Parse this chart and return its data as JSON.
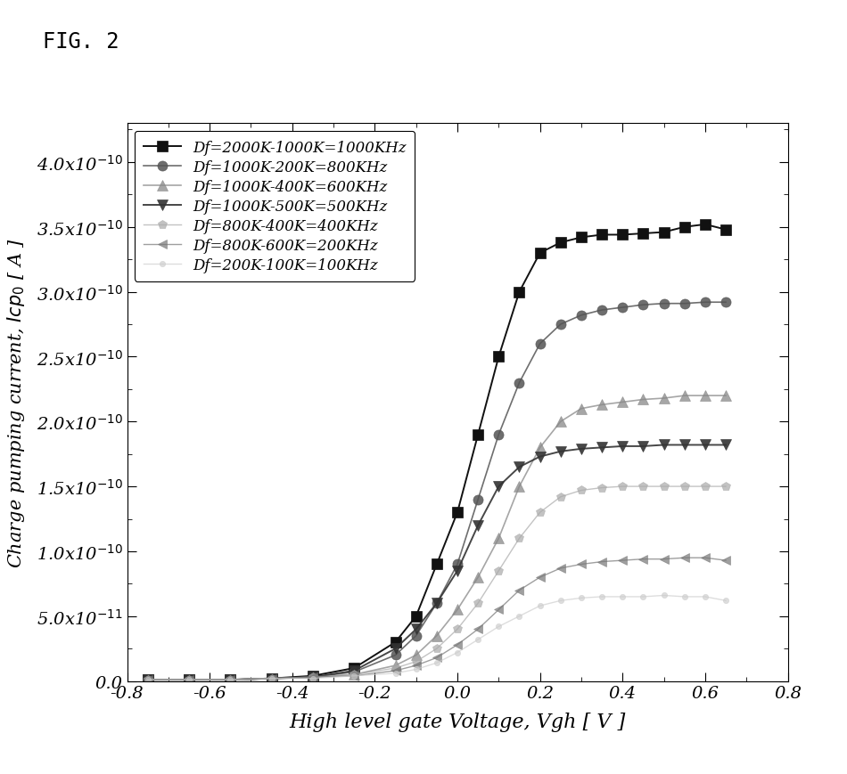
{
  "title": "FIG. 2",
  "xlabel": "High level gate Voltage, Vgh [ V ]",
  "ylabel": "Charge pumping current, Icp$_0$ [ A ]",
  "xlim": [
    -0.8,
    0.8
  ],
  "ylim": [
    0.0,
    4.3e-10
  ],
  "yticks": [
    0.0,
    5e-11,
    1e-10,
    1.5e-10,
    2e-10,
    2.5e-10,
    3e-10,
    3.5e-10,
    4e-10
  ],
  "xticks": [
    -0.8,
    -0.6,
    -0.4,
    -0.2,
    0.0,
    0.2,
    0.4,
    0.6,
    0.8
  ],
  "background": "#ffffff",
  "series": [
    {
      "label": "Df=2000K-1000K=1000KHz",
      "color": "#111111",
      "marker": "s",
      "markersize": 8,
      "linewidth": 1.4,
      "linestyle": "-",
      "alpha": 1.0,
      "x": [
        -0.75,
        -0.65,
        -0.55,
        -0.45,
        -0.35,
        -0.25,
        -0.15,
        -0.1,
        -0.05,
        0.0,
        0.05,
        0.1,
        0.15,
        0.2,
        0.25,
        0.3,
        0.35,
        0.4,
        0.45,
        0.5,
        0.55,
        0.6,
        0.65
      ],
      "y": [
        1e-12,
        1e-12,
        1e-12,
        2e-12,
        4e-12,
        1e-11,
        3e-11,
        5e-11,
        9e-11,
        1.3e-10,
        1.9e-10,
        2.5e-10,
        3e-10,
        3.3e-10,
        3.38e-10,
        3.42e-10,
        3.44e-10,
        3.44e-10,
        3.45e-10,
        3.46e-10,
        3.5e-10,
        3.52e-10,
        3.48e-10
      ]
    },
    {
      "label": "Df=1000K-200K=800KHz",
      "color": "#555555",
      "marker": "o",
      "markersize": 8,
      "linewidth": 1.2,
      "linestyle": "-",
      "alpha": 0.85,
      "x": [
        -0.75,
        -0.65,
        -0.55,
        -0.45,
        -0.35,
        -0.25,
        -0.15,
        -0.1,
        -0.05,
        0.0,
        0.05,
        0.1,
        0.15,
        0.2,
        0.25,
        0.3,
        0.35,
        0.4,
        0.45,
        0.5,
        0.55,
        0.6,
        0.65
      ],
      "y": [
        1e-12,
        1e-12,
        1e-12,
        2e-12,
        3e-12,
        7e-12,
        2e-11,
        3.5e-11,
        6e-11,
        9e-11,
        1.4e-10,
        1.9e-10,
        2.3e-10,
        2.6e-10,
        2.75e-10,
        2.82e-10,
        2.86e-10,
        2.88e-10,
        2.9e-10,
        2.91e-10,
        2.91e-10,
        2.92e-10,
        2.92e-10
      ]
    },
    {
      "label": "Df=1000K-400K=600KHz",
      "color": "#888888",
      "marker": "^",
      "markersize": 8,
      "linewidth": 1.2,
      "linestyle": "-",
      "alpha": 0.75,
      "x": [
        -0.75,
        -0.65,
        -0.55,
        -0.45,
        -0.35,
        -0.25,
        -0.15,
        -0.1,
        -0.05,
        0.0,
        0.05,
        0.1,
        0.15,
        0.2,
        0.25,
        0.3,
        0.35,
        0.4,
        0.45,
        0.5,
        0.55,
        0.6,
        0.65
      ],
      "y": [
        1e-12,
        1e-12,
        1e-12,
        2e-12,
        3e-12,
        5e-12,
        1.2e-11,
        2e-11,
        3.5e-11,
        5.5e-11,
        8e-11,
        1.1e-10,
        1.5e-10,
        1.8e-10,
        2e-10,
        2.1e-10,
        2.13e-10,
        2.15e-10,
        2.17e-10,
        2.18e-10,
        2.2e-10,
        2.2e-10,
        2.2e-10
      ]
    },
    {
      "label": "Df=1000K-500K=500KHz",
      "color": "#333333",
      "marker": "v",
      "markersize": 8,
      "linewidth": 1.4,
      "linestyle": "-",
      "alpha": 0.9,
      "x": [
        -0.75,
        -0.65,
        -0.55,
        -0.45,
        -0.35,
        -0.25,
        -0.15,
        -0.1,
        -0.05,
        0.0,
        0.05,
        0.1,
        0.15,
        0.2,
        0.25,
        0.3,
        0.35,
        0.4,
        0.45,
        0.5,
        0.55,
        0.6,
        0.65
      ],
      "y": [
        1e-12,
        1e-12,
        1e-12,
        2e-12,
        3e-12,
        8e-12,
        2.5e-11,
        4e-11,
        6e-11,
        8.5e-11,
        1.2e-10,
        1.5e-10,
        1.65e-10,
        1.73e-10,
        1.77e-10,
        1.79e-10,
        1.8e-10,
        1.81e-10,
        1.81e-10,
        1.82e-10,
        1.82e-10,
        1.82e-10,
        1.82e-10
      ]
    },
    {
      "label": "Df=800K-400K=400KHz",
      "color": "#aaaaaa",
      "marker": "p",
      "markersize": 7,
      "linewidth": 1.0,
      "linestyle": "-",
      "alpha": 0.7,
      "x": [
        -0.75,
        -0.65,
        -0.55,
        -0.45,
        -0.35,
        -0.25,
        -0.15,
        -0.1,
        -0.05,
        0.0,
        0.05,
        0.1,
        0.15,
        0.2,
        0.25,
        0.3,
        0.35,
        0.4,
        0.45,
        0.5,
        0.55,
        0.6,
        0.65
      ],
      "y": [
        1e-12,
        1e-12,
        1e-12,
        2e-12,
        3e-12,
        5e-12,
        1e-11,
        1.5e-11,
        2.5e-11,
        4e-11,
        6e-11,
        8.5e-11,
        1.1e-10,
        1.3e-10,
        1.42e-10,
        1.47e-10,
        1.49e-10,
        1.5e-10,
        1.5e-10,
        1.5e-10,
        1.5e-10,
        1.5e-10,
        1.5e-10
      ]
    },
    {
      "label": "Df=800K-600K=200KHz",
      "color": "#777777",
      "marker": "<",
      "markersize": 7,
      "linewidth": 1.0,
      "linestyle": "-",
      "alpha": 0.7,
      "x": [
        -0.75,
        -0.65,
        -0.55,
        -0.45,
        -0.35,
        -0.25,
        -0.15,
        -0.1,
        -0.05,
        0.0,
        0.05,
        0.1,
        0.15,
        0.2,
        0.25,
        0.3,
        0.35,
        0.4,
        0.45,
        0.5,
        0.55,
        0.6,
        0.65
      ],
      "y": [
        1e-12,
        1e-12,
        1e-12,
        2e-12,
        3e-12,
        4e-12,
        8e-12,
        1.2e-11,
        1.8e-11,
        2.8e-11,
        4e-11,
        5.5e-11,
        7e-11,
        8e-11,
        8.7e-11,
        9e-11,
        9.2e-11,
        9.3e-11,
        9.4e-11,
        9.4e-11,
        9.5e-11,
        9.5e-11,
        9.3e-11
      ]
    },
    {
      "label": "Df=200K-100K=100KHz",
      "color": "#cccccc",
      "marker": ".",
      "markersize": 9,
      "linewidth": 1.0,
      "linestyle": "-",
      "alpha": 0.65,
      "x": [
        -0.75,
        -0.65,
        -0.55,
        -0.45,
        -0.35,
        -0.25,
        -0.15,
        -0.1,
        -0.05,
        0.0,
        0.05,
        0.1,
        0.15,
        0.2,
        0.25,
        0.3,
        0.35,
        0.4,
        0.45,
        0.5,
        0.55,
        0.6,
        0.65
      ],
      "y": [
        1e-12,
        1e-12,
        1e-12,
        2e-12,
        2e-12,
        4e-12,
        6e-12,
        9e-12,
        1.4e-11,
        2.2e-11,
        3.2e-11,
        4.2e-11,
        5e-11,
        5.8e-11,
        6.2e-11,
        6.4e-11,
        6.5e-11,
        6.5e-11,
        6.5e-11,
        6.6e-11,
        6.5e-11,
        6.5e-11,
        6.2e-11
      ]
    }
  ]
}
